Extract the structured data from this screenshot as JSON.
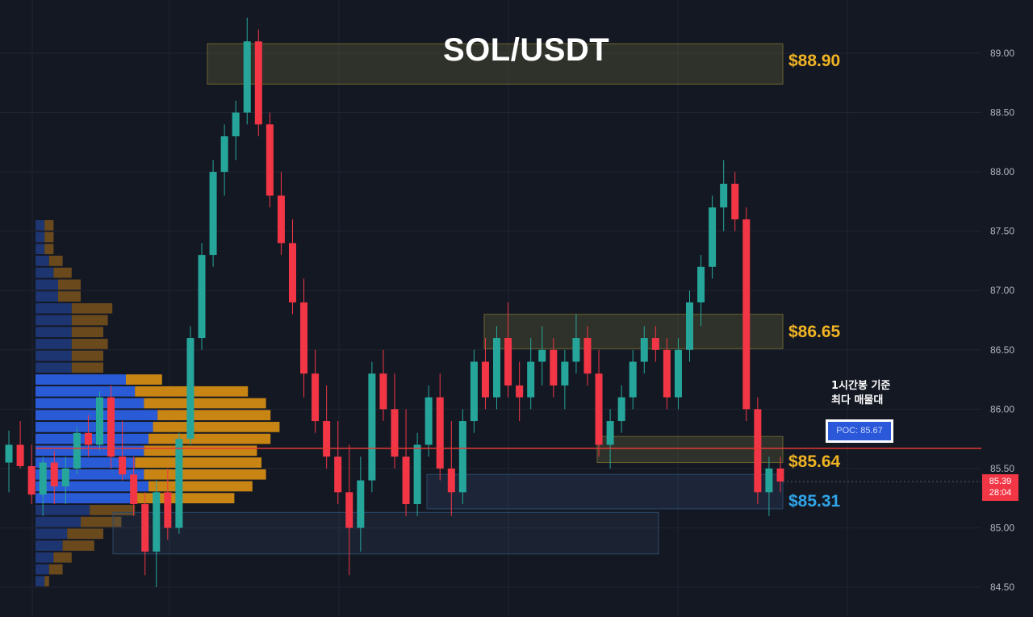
{
  "title": "SOL/USDT",
  "colors": {
    "background": "#141823",
    "grid": "#1f2433",
    "bull": "#26a69a",
    "bear": "#f23645",
    "vp_buy": "#2a5bd7",
    "vp_sell": "#c98513",
    "level_gold": "#f0b323",
    "level_blue": "#2fa4e7",
    "poc_line": "#e53935"
  },
  "levels": [
    {
      "id": "resistance-top",
      "label": "$88.90",
      "price": 88.9,
      "zone": [
        88.74,
        89.08
      ],
      "color": "gold"
    },
    {
      "id": "resistance-mid",
      "label": "$86.65",
      "price": 86.65,
      "zone": [
        86.51,
        86.8
      ],
      "color": "gold"
    },
    {
      "id": "support-1",
      "label": "$85.64",
      "price": 85.64,
      "zone": [
        85.55,
        85.77
      ],
      "color": "gold"
    },
    {
      "id": "support-2",
      "label": "$85.31",
      "price": 85.31,
      "zone": [
        85.16,
        85.45
      ],
      "color": "blue"
    }
  ],
  "annotation": {
    "line1": "1시간봉 기준",
    "line2": "최다 매물대"
  },
  "poc": {
    "label": "POC: 85.67",
    "price": 85.67
  },
  "current_price": {
    "price": "85.39",
    "countdown": "28:04"
  },
  "chart_data": {
    "type": "candlestick",
    "title": "SOL/USDT",
    "y_axis": {
      "min": 84.4,
      "max": 89.3,
      "ticks": [
        "89.00",
        "88.50",
        "88.00",
        "87.50",
        "87.00",
        "86.50",
        "86.00",
        "85.50",
        "85.00",
        "84.50"
      ]
    },
    "grid": true,
    "volume_profile": {
      "bins_low_to_high": [
        84.5,
        84.6,
        84.7,
        84.8,
        84.9,
        85.0,
        85.1,
        85.2,
        85.3,
        85.4,
        85.5,
        85.6,
        85.7,
        85.8,
        85.9,
        86.0,
        86.1,
        86.2,
        86.3,
        86.4,
        86.5,
        86.6,
        86.7,
        86.8,
        86.9,
        87.0,
        87.1,
        87.2,
        87.3,
        87.4,
        87.5
      ],
      "buy": [
        2,
        3,
        4,
        6,
        7,
        10,
        12,
        22,
        25,
        24,
        22,
        24,
        25,
        26,
        27,
        24,
        22,
        20,
        8,
        8,
        8,
        8,
        8,
        8,
        5,
        5,
        4,
        3,
        2,
        2,
        2
      ],
      "sell": [
        1,
        3,
        4,
        7,
        8,
        9,
        10,
        22,
        23,
        27,
        28,
        25,
        27,
        28,
        25,
        27,
        25,
        8,
        7,
        7,
        8,
        7,
        8,
        9,
        5,
        5,
        4,
        3,
        2,
        2,
        2
      ]
    },
    "candles": [
      [
        85.55,
        85.82,
        85.3,
        85.7
      ],
      [
        85.7,
        85.9,
        85.5,
        85.52
      ],
      [
        85.52,
        85.7,
        85.2,
        85.28
      ],
      [
        85.28,
        85.6,
        85.1,
        85.55
      ],
      [
        85.55,
        85.65,
        85.2,
        85.35
      ],
      [
        85.35,
        85.6,
        85.2,
        85.5
      ],
      [
        85.5,
        85.85,
        85.45,
        85.8
      ],
      [
        85.8,
        85.95,
        85.6,
        85.7
      ],
      [
        85.7,
        86.15,
        85.65,
        86.1
      ],
      [
        86.1,
        86.2,
        85.5,
        85.6
      ],
      [
        85.6,
        85.9,
        85.4,
        85.45
      ],
      [
        85.45,
        85.6,
        85.1,
        85.2
      ],
      [
        85.2,
        85.3,
        84.6,
        84.8
      ],
      [
        84.8,
        85.4,
        84.5,
        85.3
      ],
      [
        85.3,
        85.5,
        84.9,
        85.0
      ],
      [
        85.0,
        85.8,
        84.95,
        85.75
      ],
      [
        85.75,
        86.7,
        85.7,
        86.6
      ],
      [
        86.6,
        87.4,
        86.5,
        87.3
      ],
      [
        87.3,
        88.1,
        87.2,
        88.0
      ],
      [
        88.0,
        88.4,
        87.8,
        88.3
      ],
      [
        88.3,
        88.6,
        88.1,
        88.5
      ],
      [
        88.5,
        89.3,
        88.4,
        89.1
      ],
      [
        89.1,
        89.2,
        88.3,
        88.4
      ],
      [
        88.4,
        88.5,
        87.7,
        87.8
      ],
      [
        87.8,
        88.0,
        87.3,
        87.4
      ],
      [
        87.4,
        87.6,
        86.8,
        86.9
      ],
      [
        86.9,
        87.1,
        86.1,
        86.3
      ],
      [
        86.3,
        86.5,
        85.8,
        85.9
      ],
      [
        85.9,
        86.2,
        85.5,
        85.6
      ],
      [
        85.6,
        85.9,
        85.2,
        85.3
      ],
      [
        85.3,
        85.7,
        84.6,
        85.0
      ],
      [
        85.0,
        85.6,
        84.8,
        85.4
      ],
      [
        85.4,
        86.4,
        85.3,
        86.3
      ],
      [
        86.3,
        86.5,
        85.9,
        86.0
      ],
      [
        86.0,
        86.3,
        85.5,
        85.6
      ],
      [
        85.6,
        86.0,
        85.1,
        85.2
      ],
      [
        85.2,
        85.8,
        85.1,
        85.7
      ],
      [
        85.7,
        86.2,
        85.6,
        86.1
      ],
      [
        86.1,
        86.3,
        85.4,
        85.5
      ],
      [
        85.5,
        85.9,
        85.1,
        85.3
      ],
      [
        85.3,
        86.0,
        85.2,
        85.9
      ],
      [
        85.9,
        86.5,
        85.8,
        86.4
      ],
      [
        86.4,
        86.6,
        86.0,
        86.1
      ],
      [
        86.1,
        86.7,
        86.0,
        86.6
      ],
      [
        86.6,
        86.9,
        86.1,
        86.2
      ],
      [
        86.2,
        86.4,
        85.9,
        86.1
      ],
      [
        86.1,
        86.6,
        86.0,
        86.4
      ],
      [
        86.4,
        86.7,
        86.2,
        86.5
      ],
      [
        86.5,
        86.6,
        86.1,
        86.2
      ],
      [
        86.2,
        86.5,
        86.0,
        86.4
      ],
      [
        86.4,
        86.8,
        86.3,
        86.6
      ],
      [
        86.6,
        86.7,
        86.2,
        86.3
      ],
      [
        86.3,
        86.5,
        85.6,
        85.7
      ],
      [
        85.7,
        86.0,
        85.5,
        85.9
      ],
      [
        85.9,
        86.2,
        85.8,
        86.1
      ],
      [
        86.1,
        86.5,
        86.0,
        86.4
      ],
      [
        86.4,
        86.7,
        86.3,
        86.6
      ],
      [
        86.6,
        86.7,
        86.4,
        86.5
      ],
      [
        86.5,
        86.6,
        86.0,
        86.1
      ],
      [
        86.1,
        86.6,
        86.0,
        86.5
      ],
      [
        86.5,
        87.0,
        86.4,
        86.9
      ],
      [
        86.9,
        87.3,
        86.7,
        87.2
      ],
      [
        87.2,
        87.8,
        87.1,
        87.7
      ],
      [
        87.7,
        88.1,
        87.5,
        87.9
      ],
      [
        87.9,
        88.0,
        87.5,
        87.6
      ],
      [
        87.6,
        87.7,
        85.9,
        86.0
      ],
      [
        86.0,
        86.1,
        85.2,
        85.3
      ],
      [
        85.3,
        85.6,
        85.1,
        85.5
      ],
      [
        85.5,
        85.6,
        85.3,
        85.39
      ]
    ]
  }
}
